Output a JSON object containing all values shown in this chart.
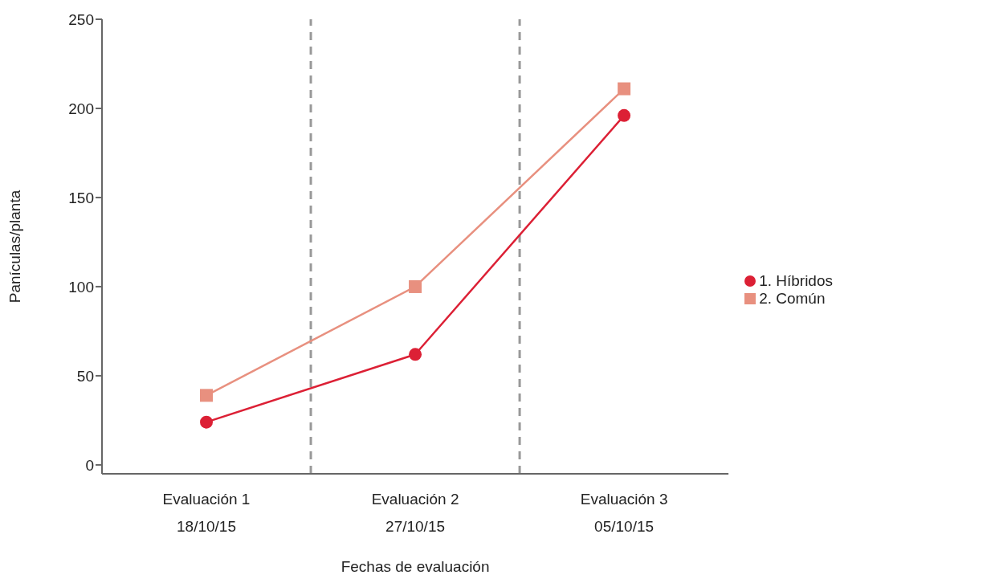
{
  "chart_data": {
    "type": "line",
    "xlabel": "Fechas de evaluación",
    "ylabel": "Panículas/planta",
    "categories": [
      "Evaluación 1\n18/10/15",
      "Evaluación 2\n27/10/15",
      "Evaluación 3\n05/10/15"
    ],
    "series": [
      {
        "name": "1. Híbridos",
        "color": "#dc2035",
        "marker": "circle",
        "values": [
          24,
          62,
          196
        ]
      },
      {
        "name": "2. Común",
        "color": "#e8907f",
        "marker": "square",
        "values": [
          39,
          100,
          211
        ]
      }
    ],
    "ylim": [
      -5,
      250
    ],
    "yticks": [
      0,
      50,
      100,
      150,
      200,
      250
    ],
    "legend": "right",
    "grid": false,
    "line_style": "solid"
  }
}
